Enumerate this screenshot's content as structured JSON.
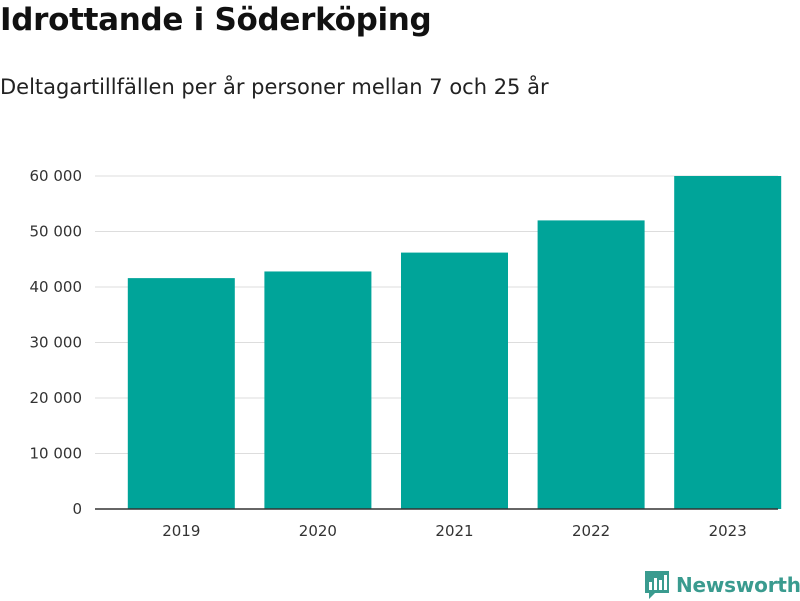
{
  "title": "Idrottande i Söderköping",
  "subtitle": "Deltagartillfällen per år personer mellan 7 och 25 år",
  "brand": {
    "name": "Newsworthy",
    "color": "#3a9b8f"
  },
  "chart_data": {
    "type": "bar",
    "categories": [
      "2019",
      "2020",
      "2021",
      "2022",
      "2023"
    ],
    "values": [
      41600,
      42800,
      46200,
      52000,
      60000
    ],
    "ylim": [
      0,
      60000
    ],
    "yticks": [
      0,
      10000,
      20000,
      30000,
      40000,
      50000,
      60000
    ],
    "ytick_labels": [
      "0",
      "10 000",
      "20 000",
      "30 000",
      "40 000",
      "50 000",
      "60 000"
    ],
    "grid": true,
    "bar_color": "#00a499",
    "grid_color": "#dddddd",
    "axis_color": "#333333"
  }
}
